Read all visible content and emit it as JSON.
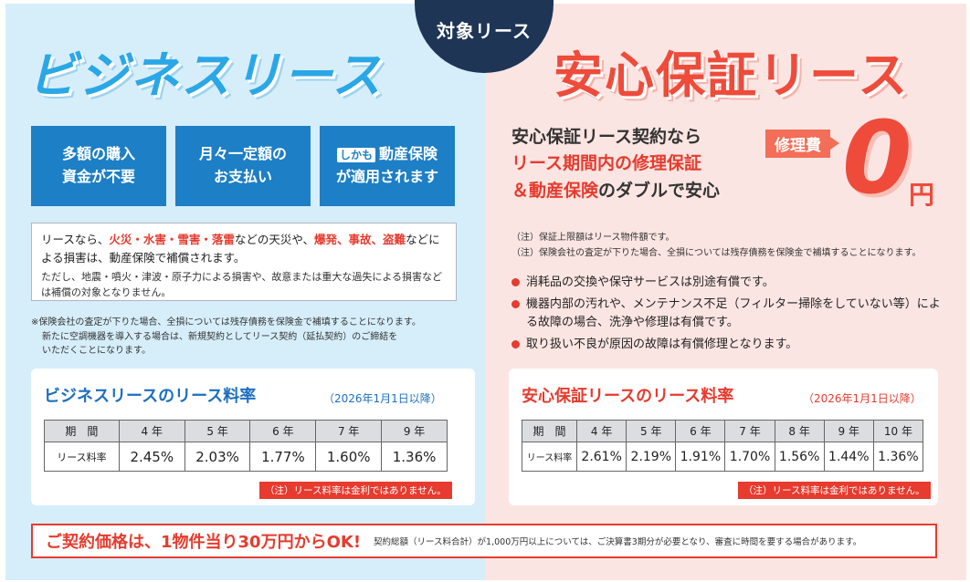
{
  "badge": {
    "label": "対象リース"
  },
  "left": {
    "title": "ビジネスリース",
    "boxes": [
      {
        "line1": "多額の購入",
        "line2": "資金が不要"
      },
      {
        "line1": "月々一定額の",
        "line2": "お支払い"
      },
      {
        "tag": "しかも",
        "line1": "動産保険",
        "line2": "が適用されます"
      }
    ],
    "info": {
      "p1_before": "リースなら、",
      "hazards1": "火災・水害・雪害・落雷",
      "p1_mid": "などの天災や、",
      "hazards2": "爆発、事故、盗難",
      "p1_after": "などによる損害は、動産保険で補償されます。",
      "p2": "ただし、地震・噴火・津波・原子力による損害や、故意または重大な過失による損害などは補償の対象となりません。"
    },
    "note": [
      "※保険会社の査定が下りた場合、全損については残存債務を保険金で補填することになります。",
      "新たに空調機器を導入する場合は、新規契約としてリース契約（延払契約）のご締結を",
      "いただくことになります。"
    ],
    "card": {
      "title": "ビジネスリースのリース料率",
      "date": "（2026年1月1日以降）",
      "header_label": "期　間",
      "row_label": "リース料率",
      "periods": [
        "4 年",
        "5 年",
        "6 年",
        "7 年",
        "9 年"
      ],
      "rates": [
        "2.45%",
        "2.03%",
        "1.77%",
        "1.60%",
        "1.36%"
      ],
      "note": "（注）リース料率は金利ではありません。"
    }
  },
  "right": {
    "title": "安心保証リース",
    "headline": {
      "line1": "安心保証リース契約なら",
      "line2": "リース期間内の修理保証",
      "line3_em": "＆動産保険",
      "line3_rest": "のダブルで安心"
    },
    "repair_tag": "修理費",
    "zero": "0",
    "yen": "円",
    "notes": [
      "（注）保証上限額はリース物件額です。",
      "（注）保険会社の査定が下りた場合、全損については残存債務を保険金で補填することになります。"
    ],
    "bullets": [
      "消耗品の交換や保守サービスは別途有償です。",
      "機器内部の汚れや、メンテナンス不足（フィルター掃除をしていない等）による故障の場合、洗浄や修理は有償です。",
      "取り扱い不良が原因の故障は有償修理となります。"
    ],
    "card": {
      "title": "安心保証リースのリース料率",
      "date": "（2026年1月1日以降）",
      "header_label": "期　間",
      "row_label": "リース料率",
      "periods": [
        "4 年",
        "5 年",
        "6 年",
        "7 年",
        "8 年",
        "9 年",
        "10 年"
      ],
      "rates": [
        "2.61%",
        "2.19%",
        "1.91%",
        "1.70%",
        "1.56%",
        "1.44%",
        "1.36%"
      ],
      "note": "（注）リース料率は金利ではありません。"
    }
  },
  "bottom": {
    "main": "ご契約価格は、1物件当り30万円からOK!",
    "note": "契約総額（リース料合計）が1,000万円以上については、ご決算書3期分が必要となり、審査に時間を要する場合があります。"
  },
  "colors": {
    "blue": "#1d7fc5",
    "red": "#e63b2e",
    "navy": "#1e3556"
  }
}
